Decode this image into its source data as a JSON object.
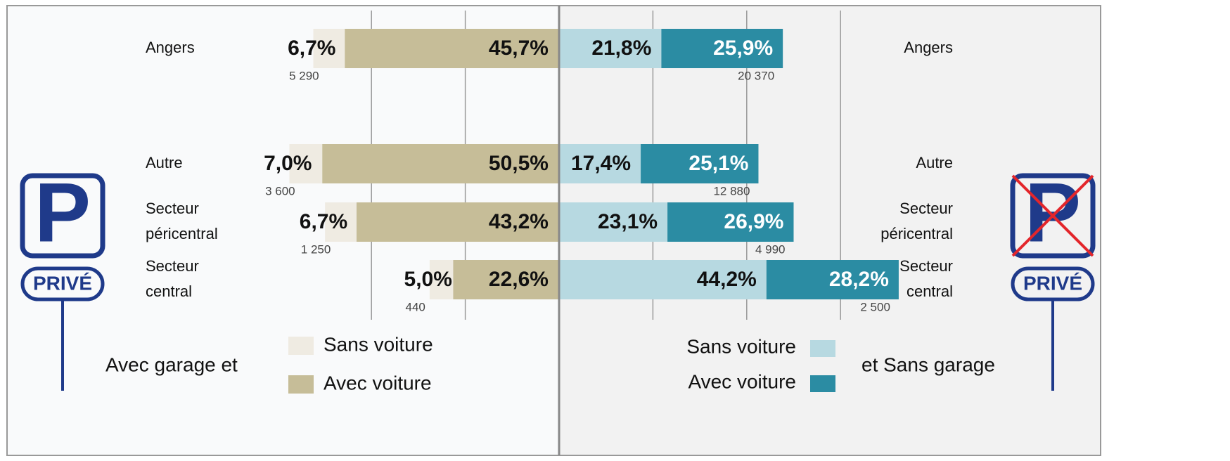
{
  "chart_data": {
    "type": "diverging_bar",
    "categories": [
      [
        "Angers"
      ],
      [
        "Autre"
      ],
      [
        "Secteur",
        "péricentral"
      ],
      [
        "Secteur",
        "central"
      ]
    ],
    "left": {
      "legend_text": "Avec garage et",
      "series": [
        {
          "name": "Sans voiture",
          "color": "#efebe2",
          "values": [
            6.7,
            7.0,
            6.7,
            5.0
          ],
          "value_labels": [
            "6,7%",
            "7,0%",
            "6,7%",
            "5,0%"
          ]
        },
        {
          "name": "Avec voiture",
          "color": "#c6bd98",
          "values": [
            45.7,
            50.5,
            43.2,
            22.6
          ],
          "value_labels": [
            "45,7%",
            "50,5%",
            "43,2%",
            "22,6%"
          ]
        }
      ],
      "counts": [
        5290,
        3600,
        1250,
        440
      ],
      "count_labels": [
        "5 290",
        "3 600",
        "1 250",
        "440"
      ],
      "grid": [
        20,
        40
      ]
    },
    "right": {
      "legend_text": "et Sans garage",
      "series": [
        {
          "name": "Sans voiture",
          "color": "#b7d9e1",
          "values": [
            21.8,
            17.4,
            23.1,
            44.2
          ],
          "value_labels": [
            "21,8%",
            "17,4%",
            "23,1%",
            "44,2%"
          ]
        },
        {
          "name": "Avec voiture",
          "color": "#2b8ca3",
          "values": [
            25.9,
            25.1,
            26.9,
            28.2
          ],
          "value_labels": [
            "25,9%",
            "25,1%",
            "26,9%",
            "28,2%"
          ]
        }
      ],
      "counts": [
        20370,
        12880,
        4990,
        2500
      ],
      "count_labels": [
        "20 370",
        "12 880",
        "4 990",
        "2 500"
      ],
      "grid": [
        20,
        40,
        60
      ]
    },
    "signs": {
      "letter": "P",
      "label": "PRIVÉ"
    }
  }
}
